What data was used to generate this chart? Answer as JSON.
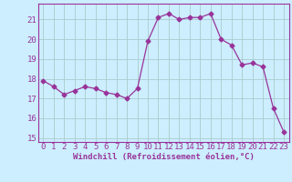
{
  "x": [
    0,
    1,
    2,
    3,
    4,
    5,
    6,
    7,
    8,
    9,
    10,
    11,
    12,
    13,
    14,
    15,
    16,
    17,
    18,
    19,
    20,
    21,
    22,
    23
  ],
  "y": [
    17.9,
    17.6,
    17.2,
    17.4,
    17.6,
    17.5,
    17.3,
    17.2,
    17.0,
    17.5,
    19.9,
    21.1,
    21.3,
    21.0,
    21.1,
    21.1,
    21.3,
    20.0,
    19.7,
    18.7,
    18.8,
    18.6,
    16.5,
    15.3
  ],
  "line_color": "#993399",
  "marker": "D",
  "marker_size": 2.5,
  "bg_color": "#cceeff",
  "grid_color": "#aacccc",
  "xlabel": "Windchill (Refroidissement éolien,°C)",
  "xlabel_fontsize": 6.5,
  "tick_fontsize": 6.5,
  "ylim": [
    14.8,
    21.8
  ],
  "yticks": [
    15,
    16,
    17,
    18,
    19,
    20,
    21
  ],
  "xticks": [
    0,
    1,
    2,
    3,
    4,
    5,
    6,
    7,
    8,
    9,
    10,
    11,
    12,
    13,
    14,
    15,
    16,
    17,
    18,
    19,
    20,
    21,
    22,
    23
  ],
  "xtick_labels": [
    "0",
    "1",
    "2",
    "3",
    "4",
    "5",
    "6",
    "7",
    "8",
    "9",
    "10",
    "11",
    "12",
    "13",
    "14",
    "15",
    "16",
    "17",
    "18",
    "19",
    "20",
    "21",
    "22",
    "23"
  ]
}
